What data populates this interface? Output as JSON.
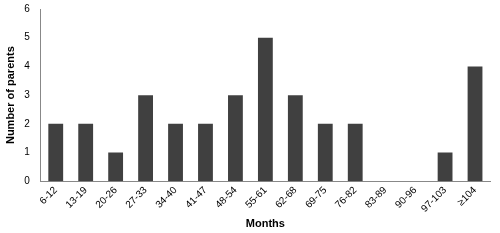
{
  "chart_data": {
    "type": "bar",
    "x_label": "Months",
    "y_label": "Number of parents",
    "categories": [
      "6-12",
      "13-19",
      "20-26",
      "27-33",
      "34-40",
      "41-47",
      "48-54",
      "55-61",
      "62-68",
      "69-75",
      "76-82",
      "83-89",
      "90-96",
      "97-103",
      "≥104"
    ],
    "values": [
      2,
      2,
      1,
      3,
      2,
      2,
      3,
      5,
      3,
      2,
      2,
      0,
      0,
      1,
      4
    ],
    "color": "#404040",
    "ylim": [
      0,
      6
    ],
    "yticks": [
      0,
      1,
      2,
      3,
      4,
      5,
      6
    ],
    "grid": false
  }
}
